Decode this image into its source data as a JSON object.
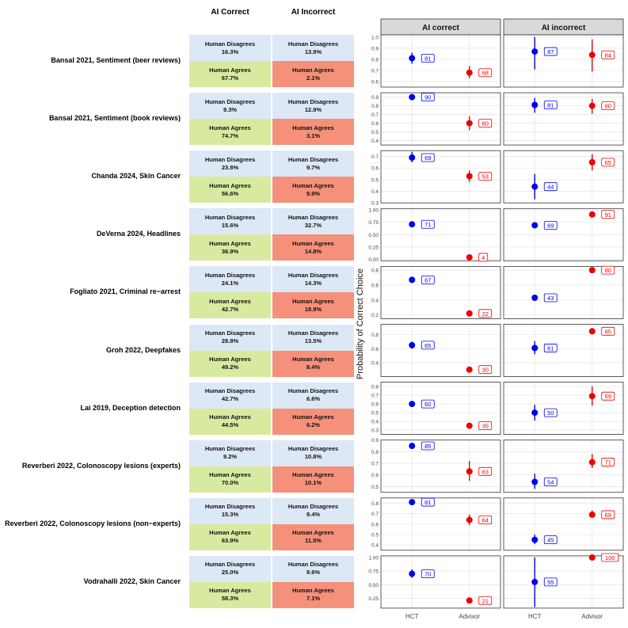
{
  "table": {
    "col_headers": [
      "AI Correct",
      "AI Incorrect"
    ],
    "disagree_label": "Human Disagrees",
    "agree_label": "Human Agrees",
    "rows": [
      {
        "study": "Bansal 2021, Sentiment (beer reviews)",
        "c_dis": "16.3%",
        "c_agr": "67.7%",
        "i_dis": "13.9%",
        "i_agr": "2.1%"
      },
      {
        "study": "Bansal 2021, Sentiment (book reviews)",
        "c_dis": "9.3%",
        "c_agr": "74.7%",
        "i_dis": "12.9%",
        "i_agr": "3.1%"
      },
      {
        "study": "Chanda 2024, Skin Cancer",
        "c_dis": "23.8%",
        "c_agr": "56.6%",
        "i_dis": "9.7%",
        "i_agr": "9.9%"
      },
      {
        "study": "DeVerna 2024, Headlines",
        "c_dis": "15.6%",
        "c_agr": "36.9%",
        "i_dis": "32.7%",
        "i_agr": "14.8%"
      },
      {
        "study": "Fogliato 2021, Criminal re−arrest",
        "c_dis": "24.1%",
        "c_agr": "42.7%",
        "i_dis": "14.3%",
        "i_agr": "18.9%"
      },
      {
        "study": "Groh 2022, Deepfakes",
        "c_dis": "28.8%",
        "c_agr": "49.2%",
        "i_dis": "13.5%",
        "i_agr": "8.4%"
      },
      {
        "study": "Lai 2019, Deception detection",
        "c_dis": "42.7%",
        "c_agr": "44.5%",
        "i_dis": "6.6%",
        "i_agr": "6.2%"
      },
      {
        "study": "Reverberi 2022, Colonoscopy lesions (experts)",
        "c_dis": "9.2%",
        "c_agr": "70.0%",
        "i_dis": "10.8%",
        "i_agr": "10.1%"
      },
      {
        "study": "Reverberi 2022, Colonoscopy lesions (non−experts)",
        "c_dis": "15.3%",
        "c_agr": "63.9%",
        "i_dis": "9.4%",
        "i_agr": "11.5%"
      },
      {
        "study": "Vodrahalli 2022, Skin Cancer",
        "c_dis": "25.0%",
        "c_agr": "58.3%",
        "i_dis": "9.6%",
        "i_agr": "7.1%"
      }
    ]
  },
  "colors": {
    "hct": "#0000ee",
    "advisor": "#ee0000",
    "blue_cell": "#dce8f5",
    "green_cell": "#d8eaa0",
    "red_cell": "#f5907a",
    "strip": "#d9d9d9"
  },
  "chart_data": {
    "type": "scatter",
    "ylabel": "Probability of Correct Choice",
    "facet_columns": [
      "AI correct",
      "AI incorrect"
    ],
    "categories": [
      "HCT",
      "Advisor"
    ],
    "grid": true,
    "rows": [
      {
        "ylim": [
          0.55,
          1.02
        ],
        "ticks": [
          0.6,
          0.7,
          0.8,
          0.9,
          1.0
        ],
        "tick_labels": [
          "0.6",
          "0.7",
          "0.8",
          "0.9",
          "1.0"
        ],
        "correct": {
          "hct": {
            "y": 0.81,
            "lo": 0.76,
            "hi": 0.86,
            "label": "81"
          },
          "advisor": {
            "y": 0.68,
            "lo": 0.63,
            "hi": 0.74,
            "label": "68"
          }
        },
        "incorrect": {
          "hct": {
            "y": 0.87,
            "lo": 0.71,
            "hi": 1.0,
            "label": "87"
          },
          "advisor": {
            "y": 0.84,
            "lo": 0.69,
            "hi": 0.98,
            "label": "84"
          }
        }
      },
      {
        "ylim": [
          0.35,
          0.95
        ],
        "ticks": [
          0.4,
          0.5,
          0.6,
          0.7,
          0.8,
          0.9
        ],
        "tick_labels": [
          "0.4",
          "0.5",
          "0.6",
          "0.7",
          "0.8",
          "0.9"
        ],
        "correct": {
          "hct": {
            "y": 0.9,
            "lo": 0.87,
            "hi": 0.92,
            "label": "90"
          },
          "advisor": {
            "y": 0.6,
            "lo": 0.52,
            "hi": 0.68,
            "label": "60"
          }
        },
        "incorrect": {
          "hct": {
            "y": 0.81,
            "lo": 0.72,
            "hi": 0.89,
            "label": "81"
          },
          "advisor": {
            "y": 0.8,
            "lo": 0.71,
            "hi": 0.88,
            "label": "80"
          }
        }
      },
      {
        "ylim": [
          0.3,
          0.75
        ],
        "ticks": [
          0.3,
          0.4,
          0.5,
          0.6,
          0.7
        ],
        "tick_labels": [
          "0.3",
          "0.4",
          "0.5",
          "0.6",
          "0.7"
        ],
        "correct": {
          "hct": {
            "y": 0.69,
            "lo": 0.65,
            "hi": 0.74,
            "label": "69"
          },
          "advisor": {
            "y": 0.53,
            "lo": 0.48,
            "hi": 0.58,
            "label": "53"
          }
        },
        "incorrect": {
          "hct": {
            "y": 0.44,
            "lo": 0.33,
            "hi": 0.55,
            "label": "44"
          },
          "advisor": {
            "y": 0.65,
            "lo": 0.58,
            "hi": 0.72,
            "label": "65"
          }
        }
      },
      {
        "ylim": [
          -0.03,
          1.03
        ],
        "ticks": [
          0.0,
          0.25,
          0.5,
          0.75,
          1.0
        ],
        "tick_labels": [
          "0.00",
          "0.25",
          "0.50",
          "0.75",
          "1.00"
        ],
        "correct": {
          "hct": {
            "y": 0.71,
            "lo": 0.69,
            "hi": 0.73,
            "label": "71"
          },
          "advisor": {
            "y": 0.04,
            "lo": 0.03,
            "hi": 0.06,
            "label": "4"
          }
        },
        "incorrect": {
          "hct": {
            "y": 0.69,
            "lo": 0.66,
            "hi": 0.72,
            "label": "69"
          },
          "advisor": {
            "y": 0.91,
            "lo": 0.89,
            "hi": 0.93,
            "label": "91"
          }
        }
      },
      {
        "ylim": [
          0.15,
          0.85
        ],
        "ticks": [
          0.2,
          0.4,
          0.6,
          0.8
        ],
        "tick_labels": [
          "0.2",
          "0.4",
          "0.6",
          "0.8"
        ],
        "correct": {
          "hct": {
            "y": 0.67,
            "lo": 0.65,
            "hi": 0.69,
            "label": "67"
          },
          "advisor": {
            "y": 0.22,
            "lo": 0.2,
            "hi": 0.24,
            "label": "22"
          }
        },
        "incorrect": {
          "hct": {
            "y": 0.43,
            "lo": 0.4,
            "hi": 0.46,
            "label": "43"
          },
          "advisor": {
            "y": 0.8,
            "lo": 0.78,
            "hi": 0.82,
            "label": "80"
          }
        }
      },
      {
        "ylim": [
          0.2,
          0.95
        ],
        "ticks": [
          0.4,
          0.6,
          0.8
        ],
        "tick_labels": [
          "0.4",
          "0.6",
          "0.8"
        ],
        "correct": {
          "hct": {
            "y": 0.65,
            "lo": 0.6,
            "hi": 0.7,
            "label": "65"
          },
          "advisor": {
            "y": 0.3,
            "lo": 0.28,
            "hi": 0.32,
            "label": "30"
          }
        },
        "incorrect": {
          "hct": {
            "y": 0.61,
            "lo": 0.52,
            "hi": 0.71,
            "label": "61"
          },
          "advisor": {
            "y": 0.85,
            "lo": 0.82,
            "hi": 0.88,
            "label": "85"
          }
        }
      },
      {
        "ylim": [
          0.25,
          0.85
        ],
        "ticks": [
          0.3,
          0.4,
          0.5,
          0.6,
          0.7,
          0.8
        ],
        "tick_labels": [
          "0.3",
          "0.4",
          "0.5",
          "0.6",
          "0.7",
          "0.8"
        ],
        "correct": {
          "hct": {
            "y": 0.6,
            "lo": 0.58,
            "hi": 0.62,
            "label": "60"
          },
          "advisor": {
            "y": 0.35,
            "lo": 0.32,
            "hi": 0.38,
            "label": "35"
          }
        },
        "incorrect": {
          "hct": {
            "y": 0.5,
            "lo": 0.41,
            "hi": 0.59,
            "label": "50"
          },
          "advisor": {
            "y": 0.69,
            "lo": 0.58,
            "hi": 0.8,
            "label": "69"
          }
        }
      },
      {
        "ylim": [
          0.45,
          0.9
        ],
        "ticks": [
          0.5,
          0.6,
          0.7,
          0.8,
          0.9
        ],
        "tick_labels": [
          "0.5",
          "0.6",
          "0.7",
          "0.8",
          "0.9"
        ],
        "correct": {
          "hct": {
            "y": 0.85,
            "lo": 0.83,
            "hi": 0.87,
            "label": "85"
          },
          "advisor": {
            "y": 0.63,
            "lo": 0.55,
            "hi": 0.72,
            "label": "63"
          }
        },
        "incorrect": {
          "hct": {
            "y": 0.54,
            "lo": 0.48,
            "hi": 0.61,
            "label": "54"
          },
          "advisor": {
            "y": 0.71,
            "lo": 0.66,
            "hi": 0.78,
            "label": "71"
          }
        }
      },
      {
        "ylim": [
          0.35,
          0.85
        ],
        "ticks": [
          0.4,
          0.5,
          0.6,
          0.7,
          0.8
        ],
        "tick_labels": [
          "0.4",
          "0.5",
          "0.6",
          "0.7",
          "0.8"
        ],
        "correct": {
          "hct": {
            "y": 0.81,
            "lo": 0.79,
            "hi": 0.83,
            "label": "81"
          },
          "advisor": {
            "y": 0.64,
            "lo": 0.59,
            "hi": 0.69,
            "label": "64"
          }
        },
        "incorrect": {
          "hct": {
            "y": 0.45,
            "lo": 0.41,
            "hi": 0.5,
            "label": "45"
          },
          "advisor": {
            "y": 0.69,
            "lo": 0.66,
            "hi": 0.73,
            "label": "69"
          }
        }
      },
      {
        "ylim": [
          0.07,
          1.03
        ],
        "ticks": [
          0.25,
          0.5,
          0.75,
          1.0
        ],
        "tick_labels": [
          "0.25",
          "0.50",
          "0.75",
          "1.00"
        ],
        "correct": {
          "hct": {
            "y": 0.7,
            "lo": 0.63,
            "hi": 0.78,
            "label": "70"
          },
          "advisor": {
            "y": 0.21,
            "lo": 0.19,
            "hi": 0.23,
            "label": "21"
          }
        },
        "incorrect": {
          "hct": {
            "y": 0.55,
            "lo": 0.09,
            "hi": 1.0,
            "label": "55"
          },
          "advisor": {
            "y": 1.0,
            "lo": 1.0,
            "hi": 1.0,
            "label": "100"
          }
        }
      }
    ]
  }
}
